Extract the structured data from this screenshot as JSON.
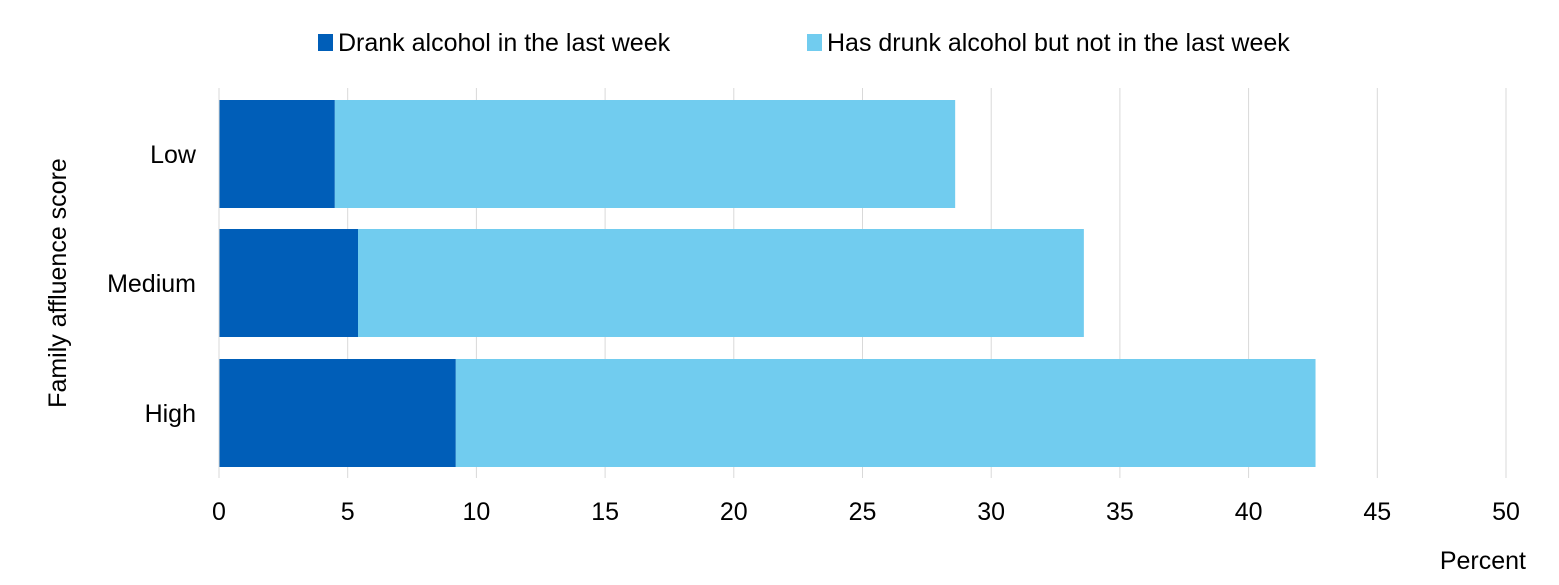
{
  "chart_data": {
    "type": "bar",
    "orientation": "horizontal",
    "stacked": true,
    "categories": [
      "Low",
      "Medium",
      "High"
    ],
    "series": [
      {
        "name": "Drank alcohol in the last week",
        "values": [
          4.5,
          5.4,
          9.2
        ]
      },
      {
        "name": "Has drunk alcohol but not in the last week",
        "values": [
          24.1,
          28.2,
          33.4
        ]
      }
    ],
    "xlabel": "Percent",
    "ylabel": "Family affluence score",
    "xlim": [
      0,
      50
    ],
    "xticks": [
      "0",
      "5",
      "10",
      "15",
      "20",
      "25",
      "30",
      "35",
      "40",
      "45",
      "50"
    ],
    "grid": "vertical",
    "legend_position": "top",
    "colors": [
      "#005EB8",
      "#71CCEF"
    ],
    "gridline_color": "#D9D9D9"
  }
}
